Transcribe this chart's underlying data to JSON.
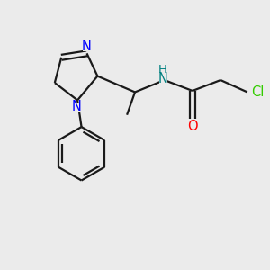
{
  "background_color": "#ebebeb",
  "bond_color": "#1a1a1a",
  "N_color": "#0000ff",
  "O_color": "#ff0000",
  "Cl_color": "#33cc00",
  "NH_color": "#008080",
  "lw": 1.6,
  "fs": 10.5,
  "figsize": [
    3.0,
    3.0
  ],
  "dpi": 100,
  "xlim": [
    0,
    10
  ],
  "ylim": [
    0,
    10
  ]
}
